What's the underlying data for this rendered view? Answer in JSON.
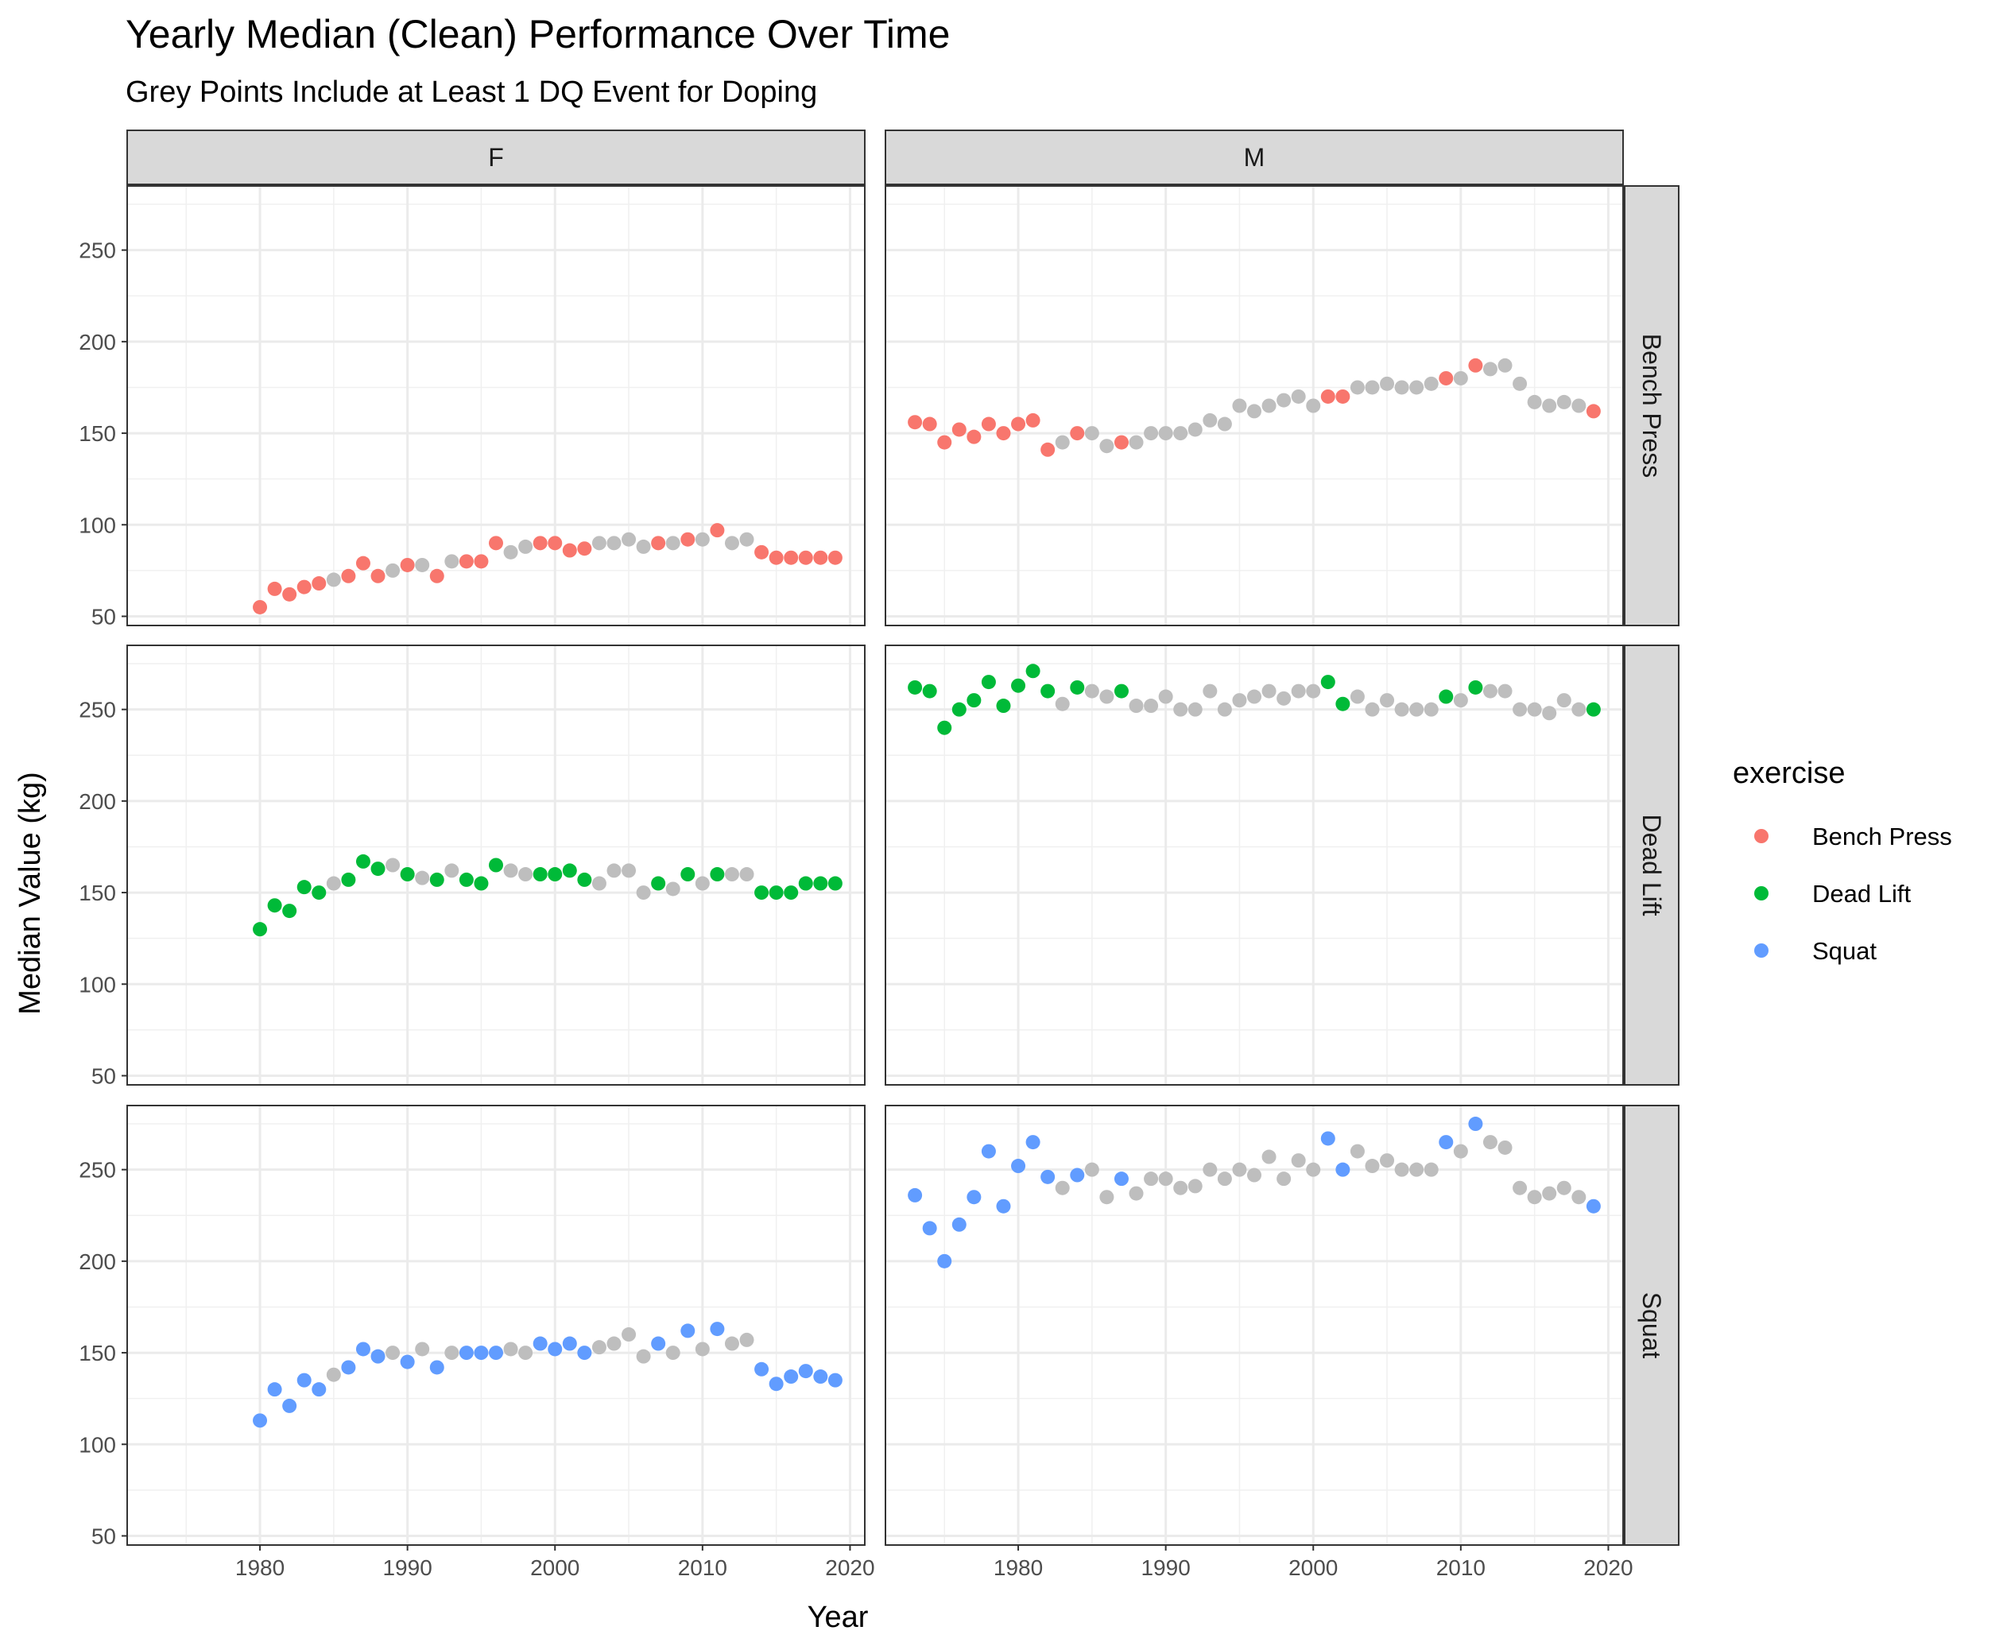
{
  "chart_data": {
    "type": "scatter",
    "title": "Yearly Median (Clean) Performance Over Time",
    "subtitle": "Grey Points Include at Least 1 DQ Event for Doping",
    "xlabel": "Year",
    "ylabel": "Median Value (kg)",
    "xlim": [
      1971,
      2021
    ],
    "ylim": [
      45,
      285
    ],
    "x_ticks": [
      1980,
      1990,
      2000,
      2010,
      2020
    ],
    "y_ticks": [
      50,
      100,
      150,
      200,
      250
    ],
    "grid": true,
    "facet_columns": [
      "F",
      "M"
    ],
    "facet_rows": [
      "Bench Press",
      "Dead Lift",
      "Squat"
    ],
    "legend": {
      "title": "exercise",
      "position": "right",
      "entries": [
        {
          "label": "Bench Press",
          "color": "#F8766D"
        },
        {
          "label": "Dead Lift",
          "color": "#00BA38"
        },
        {
          "label": "Squat",
          "color": "#619CFF"
        }
      ]
    },
    "dq_color": "#BEBEBE",
    "facets": {
      "F": {
        "Bench Press": {
          "clean": [
            [
              1980,
              55
            ],
            [
              1981,
              65
            ],
            [
              1982,
              62
            ],
            [
              1983,
              66
            ],
            [
              1984,
              68
            ],
            [
              1986,
              72
            ],
            [
              1987,
              79
            ],
            [
              1988,
              72
            ],
            [
              1990,
              78
            ],
            [
              1992,
              72
            ],
            [
              1994,
              80
            ],
            [
              1995,
              80
            ],
            [
              1996,
              90
            ],
            [
              1999,
              90
            ],
            [
              2000,
              90
            ],
            [
              2001,
              86
            ],
            [
              2002,
              87
            ],
            [
              2007,
              90
            ],
            [
              2009,
              92
            ],
            [
              2011,
              97
            ],
            [
              2014,
              85
            ],
            [
              2015,
              82
            ],
            [
              2016,
              82
            ],
            [
              2017,
              82
            ],
            [
              2018,
              82
            ],
            [
              2019,
              82
            ]
          ],
          "dq": [
            [
              1985,
              70
            ],
            [
              1989,
              75
            ],
            [
              1991,
              78
            ],
            [
              1993,
              80
            ],
            [
              1997,
              85
            ],
            [
              1998,
              88
            ],
            [
              2003,
              90
            ],
            [
              2004,
              90
            ],
            [
              2005,
              92
            ],
            [
              2006,
              88
            ],
            [
              2008,
              90
            ],
            [
              2010,
              92
            ],
            [
              2012,
              90
            ],
            [
              2013,
              92
            ]
          ]
        },
        "Dead Lift": {
          "clean": [
            [
              1980,
              130
            ],
            [
              1981,
              143
            ],
            [
              1982,
              140
            ],
            [
              1983,
              153
            ],
            [
              1984,
              150
            ],
            [
              1986,
              157
            ],
            [
              1987,
              167
            ],
            [
              1988,
              163
            ],
            [
              1990,
              160
            ],
            [
              1992,
              157
            ],
            [
              1994,
              157
            ],
            [
              1995,
              155
            ],
            [
              1996,
              165
            ],
            [
              1999,
              160
            ],
            [
              2000,
              160
            ],
            [
              2001,
              162
            ],
            [
              2002,
              157
            ],
            [
              2007,
              155
            ],
            [
              2009,
              160
            ],
            [
              2011,
              160
            ],
            [
              2014,
              150
            ],
            [
              2015,
              150
            ],
            [
              2016,
              150
            ],
            [
              2017,
              155
            ],
            [
              2018,
              155
            ],
            [
              2019,
              155
            ]
          ],
          "dq": [
            [
              1985,
              155
            ],
            [
              1989,
              165
            ],
            [
              1991,
              158
            ],
            [
              1993,
              162
            ],
            [
              1997,
              162
            ],
            [
              1998,
              160
            ],
            [
              2003,
              155
            ],
            [
              2004,
              162
            ],
            [
              2005,
              162
            ],
            [
              2006,
              150
            ],
            [
              2008,
              152
            ],
            [
              2010,
              155
            ],
            [
              2012,
              160
            ],
            [
              2013,
              160
            ]
          ]
        },
        "Squat": {
          "clean": [
            [
              1980,
              113
            ],
            [
              1981,
              130
            ],
            [
              1982,
              121
            ],
            [
              1983,
              135
            ],
            [
              1984,
              130
            ],
            [
              1986,
              142
            ],
            [
              1987,
              152
            ],
            [
              1988,
              148
            ],
            [
              1990,
              145
            ],
            [
              1992,
              142
            ],
            [
              1994,
              150
            ],
            [
              1995,
              150
            ],
            [
              1996,
              150
            ],
            [
              1999,
              155
            ],
            [
              2000,
              152
            ],
            [
              2001,
              155
            ],
            [
              2002,
              150
            ],
            [
              2007,
              155
            ],
            [
              2009,
              162
            ],
            [
              2011,
              163
            ],
            [
              2014,
              141
            ],
            [
              2015,
              133
            ],
            [
              2016,
              137
            ],
            [
              2017,
              140
            ],
            [
              2018,
              137
            ],
            [
              2019,
              135
            ]
          ],
          "dq": [
            [
              1985,
              138
            ],
            [
              1989,
              150
            ],
            [
              1991,
              152
            ],
            [
              1993,
              150
            ],
            [
              1997,
              152
            ],
            [
              1998,
              150
            ],
            [
              2003,
              153
            ],
            [
              2004,
              155
            ],
            [
              2005,
              160
            ],
            [
              2006,
              148
            ],
            [
              2008,
              150
            ],
            [
              2010,
              152
            ],
            [
              2012,
              155
            ],
            [
              2013,
              157
            ]
          ]
        }
      },
      "M": {
        "Bench Press": {
          "clean": [
            [
              1973,
              156
            ],
            [
              1974,
              155
            ],
            [
              1975,
              145
            ],
            [
              1976,
              152
            ],
            [
              1977,
              148
            ],
            [
              1978,
              155
            ],
            [
              1979,
              150
            ],
            [
              1980,
              155
            ],
            [
              1981,
              157
            ],
            [
              1982,
              141
            ],
            [
              1984,
              150
            ],
            [
              1987,
              145
            ],
            [
              2001,
              170
            ],
            [
              2002,
              170
            ],
            [
              2009,
              180
            ],
            [
              2011,
              187
            ],
            [
              2019,
              162
            ]
          ],
          "dq": [
            [
              1983,
              145
            ],
            [
              1985,
              150
            ],
            [
              1986,
              143
            ],
            [
              1988,
              145
            ],
            [
              1989,
              150
            ],
            [
              1990,
              150
            ],
            [
              1991,
              150
            ],
            [
              1992,
              152
            ],
            [
              1993,
              157
            ],
            [
              1994,
              155
            ],
            [
              1995,
              165
            ],
            [
              1996,
              162
            ],
            [
              1997,
              165
            ],
            [
              1998,
              168
            ],
            [
              1999,
              170
            ],
            [
              2000,
              165
            ],
            [
              2003,
              175
            ],
            [
              2004,
              175
            ],
            [
              2005,
              177
            ],
            [
              2006,
              175
            ],
            [
              2007,
              175
            ],
            [
              2008,
              177
            ],
            [
              2010,
              180
            ],
            [
              2012,
              185
            ],
            [
              2013,
              187
            ],
            [
              2014,
              177
            ],
            [
              2015,
              167
            ],
            [
              2016,
              165
            ],
            [
              2017,
              167
            ],
            [
              2018,
              165
            ]
          ]
        },
        "Dead Lift": {
          "clean": [
            [
              1973,
              262
            ],
            [
              1974,
              260
            ],
            [
              1975,
              240
            ],
            [
              1976,
              250
            ],
            [
              1977,
              255
            ],
            [
              1978,
              265
            ],
            [
              1979,
              252
            ],
            [
              1980,
              263
            ],
            [
              1981,
              271
            ],
            [
              1982,
              260
            ],
            [
              1984,
              262
            ],
            [
              1987,
              260
            ],
            [
              2001,
              265
            ],
            [
              2002,
              253
            ],
            [
              2009,
              257
            ],
            [
              2011,
              262
            ],
            [
              2019,
              250
            ]
          ],
          "dq": [
            [
              1983,
              253
            ],
            [
              1985,
              260
            ],
            [
              1986,
              257
            ],
            [
              1988,
              252
            ],
            [
              1989,
              252
            ],
            [
              1990,
              257
            ],
            [
              1991,
              250
            ],
            [
              1992,
              250
            ],
            [
              1993,
              260
            ],
            [
              1994,
              250
            ],
            [
              1995,
              255
            ],
            [
              1996,
              257
            ],
            [
              1997,
              260
            ],
            [
              1998,
              256
            ],
            [
              1999,
              260
            ],
            [
              2000,
              260
            ],
            [
              2003,
              257
            ],
            [
              2004,
              250
            ],
            [
              2005,
              255
            ],
            [
              2006,
              250
            ],
            [
              2007,
              250
            ],
            [
              2008,
              250
            ],
            [
              2010,
              255
            ],
            [
              2012,
              260
            ],
            [
              2013,
              260
            ],
            [
              2014,
              250
            ],
            [
              2015,
              250
            ],
            [
              2016,
              248
            ],
            [
              2017,
              255
            ],
            [
              2018,
              250
            ]
          ]
        },
        "Squat": {
          "clean": [
            [
              1973,
              236
            ],
            [
              1974,
              218
            ],
            [
              1975,
              200
            ],
            [
              1976,
              220
            ],
            [
              1977,
              235
            ],
            [
              1978,
              260
            ],
            [
              1979,
              230
            ],
            [
              1980,
              252
            ],
            [
              1981,
              265
            ],
            [
              1982,
              246
            ],
            [
              1984,
              247
            ],
            [
              1987,
              245
            ],
            [
              2001,
              267
            ],
            [
              2002,
              250
            ],
            [
              2009,
              265
            ],
            [
              2011,
              275
            ],
            [
              2019,
              230
            ]
          ],
          "dq": [
            [
              1983,
              240
            ],
            [
              1985,
              250
            ],
            [
              1986,
              235
            ],
            [
              1988,
              237
            ],
            [
              1989,
              245
            ],
            [
              1990,
              245
            ],
            [
              1991,
              240
            ],
            [
              1992,
              241
            ],
            [
              1993,
              250
            ],
            [
              1994,
              245
            ],
            [
              1995,
              250
            ],
            [
              1996,
              247
            ],
            [
              1997,
              257
            ],
            [
              1998,
              245
            ],
            [
              1999,
              255
            ],
            [
              2000,
              250
            ],
            [
              2003,
              260
            ],
            [
              2004,
              252
            ],
            [
              2005,
              255
            ],
            [
              2006,
              250
            ],
            [
              2007,
              250
            ],
            [
              2008,
              250
            ],
            [
              2010,
              260
            ],
            [
              2012,
              265
            ],
            [
              2013,
              262
            ],
            [
              2014,
              240
            ],
            [
              2015,
              235
            ],
            [
              2016,
              237
            ],
            [
              2017,
              240
            ],
            [
              2018,
              235
            ]
          ]
        }
      }
    }
  }
}
